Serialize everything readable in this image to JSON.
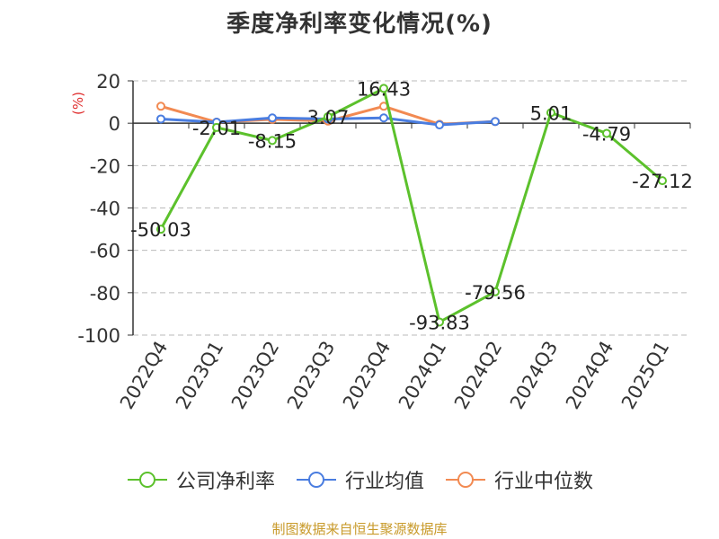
{
  "title": "季度净利率变化情况(%)",
  "unit": "(%)",
  "source": "制图数据来自恒生聚源数据库",
  "colors": {
    "company": "#5cc12c",
    "industry_avg": "#4a7de0",
    "industry_median": "#f28a52",
    "axis": "#333333",
    "grid": "#bbbbbb"
  },
  "chart_data": {
    "type": "line",
    "categories": [
      "2022Q4",
      "2023Q1",
      "2023Q2",
      "2023Q3",
      "2023Q4",
      "2024Q1",
      "2024Q2",
      "2024Q3",
      "2024Q4",
      "2025Q1"
    ],
    "ylim": [
      -100,
      20
    ],
    "yticks": [
      20,
      0,
      -20,
      -40,
      -60,
      -80,
      -100
    ],
    "grid": true,
    "legend_position": "bottom",
    "series": [
      {
        "name": "公司净利率",
        "color": "#5cc12c",
        "values": [
          -50.03,
          -2.01,
          -8.15,
          3.07,
          16.43,
          -93.83,
          -79.56,
          5.01,
          -4.79,
          -27.12
        ],
        "labels": [
          "-50.03",
          "-2.01",
          "-8.15",
          "3.07",
          "16.43",
          "-93.83",
          "-79.56",
          "5.01",
          "-4.79",
          "-27.12"
        ]
      },
      {
        "name": "行业均值",
        "color": "#4a7de0",
        "values": [
          2.0,
          0.5,
          2.5,
          2.0,
          2.5,
          -0.8,
          0.8,
          null,
          null,
          null
        ]
      },
      {
        "name": "行业中位数",
        "color": "#f28a52",
        "values": [
          8.0,
          0.5,
          1.8,
          1.0,
          8.0,
          -0.5,
          0.8,
          null,
          null,
          null
        ]
      }
    ]
  }
}
